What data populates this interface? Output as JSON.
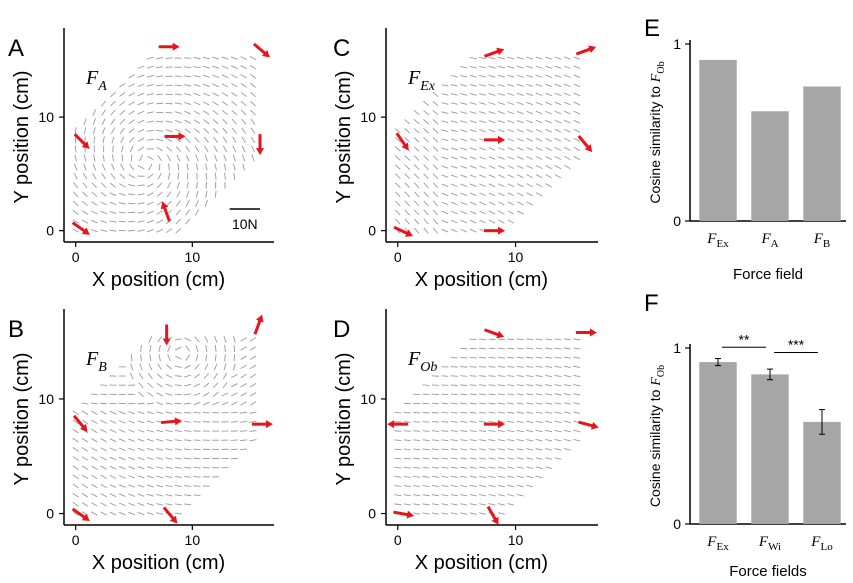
{
  "figure": {
    "quiver_axis_labels": {
      "x": "X position (cm)",
      "y": "Y position (cm)"
    },
    "scale_bar_label": "10N"
  },
  "chart_data": [
    {
      "type": "quiver",
      "panel": "A",
      "field_label": {
        "main": "F",
        "sub": "A"
      },
      "xticks": [
        "0",
        "10"
      ],
      "yticks": [
        "0",
        "10"
      ],
      "xlim": [
        -1,
        17
      ],
      "ylim": [
        -1,
        17.5
      ],
      "red_arrows": [
        {
          "x": 0.3,
          "y": 0.3,
          "angle_deg": -35
        },
        {
          "x": 0.4,
          "y": 8.0,
          "angle_deg": -45
        },
        {
          "x": 7.8,
          "y": 1.5,
          "angle_deg": 110
        },
        {
          "x": 8.3,
          "y": 8.3,
          "angle_deg": 0
        },
        {
          "x": 7.8,
          "y": 16.2,
          "angle_deg": 0
        },
        {
          "x": 15.8,
          "y": 16.0,
          "angle_deg": -40
        },
        {
          "x": 15.8,
          "y": 7.8,
          "angle_deg": -90
        }
      ]
    },
    {
      "type": "quiver",
      "panel": "C",
      "field_label": {
        "main": "F",
        "sub": "Ex"
      },
      "xticks": [
        "0",
        "10"
      ],
      "yticks": [
        "0",
        "10"
      ],
      "xlim": [
        -1,
        17
      ],
      "ylim": [
        -1,
        17.5
      ],
      "red_arrows": [
        {
          "x": 0.3,
          "y": 0.0,
          "angle_deg": -25
        },
        {
          "x": 0.3,
          "y": 8.0,
          "angle_deg": -55
        },
        {
          "x": 8.0,
          "y": 0.0,
          "angle_deg": 0
        },
        {
          "x": 8.0,
          "y": 8.0,
          "angle_deg": 0
        },
        {
          "x": 8.0,
          "y": 15.6,
          "angle_deg": 20
        },
        {
          "x": 15.8,
          "y": 15.8,
          "angle_deg": 20
        },
        {
          "x": 15.8,
          "y": 7.8,
          "angle_deg": -50
        }
      ]
    },
    {
      "type": "quiver",
      "panel": "B",
      "field_label": {
        "main": "F",
        "sub": "B"
      },
      "xticks": [
        "0",
        "10"
      ],
      "yticks": [
        "0",
        "10"
      ],
      "xlim": [
        -1,
        17
      ],
      "ylim": [
        -1,
        17.5
      ],
      "red_arrows": [
        {
          "x": 0.3,
          "y": 0.0,
          "angle_deg": -35
        },
        {
          "x": 0.3,
          "y": 8.0,
          "angle_deg": -50
        },
        {
          "x": 8.0,
          "y": 0.0,
          "angle_deg": -50
        },
        {
          "x": 8.0,
          "y": 8.0,
          "angle_deg": 5
        },
        {
          "x": 7.8,
          "y": 15.8,
          "angle_deg": -90
        },
        {
          "x": 15.6,
          "y": 16.3,
          "angle_deg": 70
        },
        {
          "x": 15.8,
          "y": 7.8,
          "angle_deg": 0
        }
      ]
    },
    {
      "type": "quiver",
      "panel": "D",
      "field_label": {
        "main": "F",
        "sub": "Ob"
      },
      "xticks": [
        "0",
        "10"
      ],
      "yticks": [
        "0",
        "10"
      ],
      "xlim": [
        -1,
        17
      ],
      "ylim": [
        -1,
        17.5
      ],
      "red_arrows": [
        {
          "x": 0.3,
          "y": 0.0,
          "angle_deg": -10
        },
        {
          "x": 0.2,
          "y": 7.8,
          "angle_deg": 180
        },
        {
          "x": 8.0,
          "y": 0.0,
          "angle_deg": -60
        },
        {
          "x": 8.0,
          "y": 7.8,
          "angle_deg": 0
        },
        {
          "x": 8.0,
          "y": 15.8,
          "angle_deg": -20
        },
        {
          "x": 15.8,
          "y": 15.8,
          "angle_deg": 0
        },
        {
          "x": 16.0,
          "y": 7.8,
          "angle_deg": -15
        }
      ]
    },
    {
      "type": "bar",
      "panel": "E",
      "ylabel_text": "Cosine similarity to ",
      "ylabel_main": "F",
      "ylabel_sub": "Ob",
      "xlabel": "Force field",
      "yticks": [
        "0",
        "1"
      ],
      "ylim": [
        0,
        1
      ],
      "categories": [
        {
          "main": "F",
          "sub": "Ex"
        },
        {
          "main": "F",
          "sub": "A"
        },
        {
          "main": "F",
          "sub": "B"
        }
      ],
      "values": [
        0.91,
        0.62,
        0.76
      ],
      "bar_color": "#a6a6a6"
    },
    {
      "type": "bar",
      "panel": "F",
      "ylabel_text": "Cosine similarity to ",
      "ylabel_main": "F",
      "ylabel_sub": "Ob",
      "xlabel": "Force fields",
      "yticks": [
        "0",
        "1"
      ],
      "ylim": [
        0,
        1
      ],
      "categories": [
        {
          "main": "F",
          "sub": "Ex"
        },
        {
          "main": "F",
          "sub": "Wi"
        },
        {
          "main": "F",
          "sub": "Lo"
        }
      ],
      "values": [
        0.92,
        0.85,
        0.58
      ],
      "errors": [
        0.02,
        0.03,
        0.07
      ],
      "significance": [
        {
          "from": 0,
          "to": 1,
          "label": "**"
        },
        {
          "from": 1,
          "to": 2,
          "label": "***"
        }
      ],
      "bar_color": "#a6a6a6"
    }
  ]
}
